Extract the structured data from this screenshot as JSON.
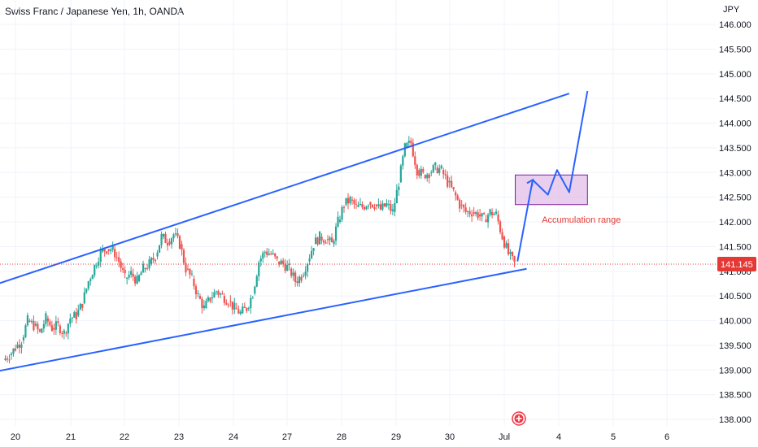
{
  "header": {
    "title": "Swiss Franc / Japanese Yen, 1h, OANDA"
  },
  "colors": {
    "up": "#26a69a",
    "down": "#ef5350",
    "trendline": "#2962ff",
    "box_fill": "#e1bee7",
    "box_stroke": "#7b1fa2",
    "annotation": "#e53935",
    "price_line": "#e53935",
    "grid": "#f0f3fa"
  },
  "chart_data": {
    "type": "candlestick",
    "title": "Swiss Franc / Japanese Yen, 1h, OANDA",
    "y_unit": "JPY",
    "ylim": [
      137.95,
      146.2
    ],
    "y_ticks": [
      "138.000",
      "138.500",
      "139.000",
      "139.500",
      "140.000",
      "140.500",
      "141.000",
      "141.500",
      "142.000",
      "142.500",
      "143.000",
      "143.500",
      "144.000",
      "144.500",
      "145.000",
      "145.500",
      "146.000"
    ],
    "x_ticks": [
      "20",
      "21",
      "22",
      "23",
      "24",
      "27",
      "28",
      "29",
      "30",
      "Jul",
      "4",
      "5",
      "6"
    ],
    "last_price": "141.145",
    "price_path": [
      [
        0,
        139.2
      ],
      [
        1,
        139.3
      ],
      [
        2,
        139.45
      ],
      [
        3,
        139.6
      ],
      [
        4,
        140.0
      ],
      [
        5,
        139.9
      ],
      [
        6,
        139.75
      ],
      [
        7,
        140.05
      ],
      [
        8,
        139.85
      ],
      [
        9,
        139.9
      ],
      [
        10,
        139.75
      ],
      [
        11,
        140.05
      ],
      [
        12,
        140.1
      ],
      [
        13,
        140.35
      ],
      [
        14,
        140.8
      ],
      [
        15,
        141.1
      ],
      [
        16,
        141.4
      ],
      [
        17,
        141.45
      ],
      [
        18,
        141.45
      ],
      [
        19,
        141.2
      ],
      [
        20,
        140.85
      ],
      [
        21,
        140.95
      ],
      [
        22,
        140.8
      ],
      [
        23,
        141.05
      ],
      [
        24,
        141.15
      ],
      [
        25,
        141.3
      ],
      [
        26,
        141.7
      ],
      [
        27,
        141.6
      ],
      [
        28,
        141.75
      ],
      [
        29,
        141.55
      ],
      [
        30,
        141.05
      ],
      [
        31,
        140.85
      ],
      [
        32,
        140.5
      ],
      [
        33,
        140.25
      ],
      [
        34,
        140.45
      ],
      [
        35,
        140.6
      ],
      [
        36,
        140.5
      ],
      [
        37,
        140.4
      ],
      [
        38,
        140.25
      ],
      [
        39,
        140.15
      ],
      [
        40,
        140.25
      ],
      [
        41,
        140.55
      ],
      [
        42,
        141.2
      ],
      [
        43,
        141.4
      ],
      [
        44,
        141.35
      ],
      [
        45,
        141.2
      ],
      [
        46,
        141.15
      ],
      [
        47,
        141.05
      ],
      [
        48,
        140.8
      ],
      [
        49,
        140.9
      ],
      [
        50,
        141.2
      ],
      [
        51,
        141.55
      ],
      [
        52,
        141.7
      ],
      [
        53,
        141.65
      ],
      [
        54,
        141.55
      ],
      [
        55,
        142.0
      ],
      [
        56,
        142.35
      ],
      [
        57,
        142.45
      ],
      [
        58,
        142.3
      ],
      [
        59,
        142.3
      ],
      [
        60,
        142.4
      ],
      [
        61,
        142.35
      ],
      [
        62,
        142.25
      ],
      [
        63,
        142.35
      ],
      [
        64,
        142.2
      ],
      [
        65,
        142.8
      ],
      [
        66,
        143.5
      ],
      [
        67,
        143.6
      ],
      [
        68,
        143.05
      ],
      [
        69,
        142.95
      ],
      [
        70,
        143.0
      ],
      [
        71,
        143.1
      ],
      [
        72,
        143.05
      ],
      [
        73,
        142.8
      ],
      [
        74,
        142.6
      ],
      [
        75,
        142.35
      ],
      [
        76,
        142.2
      ],
      [
        77,
        142.2
      ],
      [
        78,
        142.15
      ],
      [
        79,
        142.05
      ],
      [
        80,
        142.2
      ],
      [
        81,
        142.15
      ],
      [
        82,
        141.7
      ],
      [
        83,
        141.35
      ],
      [
        84,
        141.15
      ]
    ],
    "trendlines": [
      {
        "name": "upper",
        "from": [
          -2,
          140.7
        ],
        "to": [
          93,
          144.6
        ]
      },
      {
        "name": "lower",
        "from": [
          -2,
          138.95
        ],
        "to": [
          86,
          141.05
        ]
      }
    ],
    "projection": [
      [
        84.5,
        141.2
      ],
      [
        87,
        142.85
      ],
      [
        89.5,
        142.55
      ],
      [
        91,
        143.05
      ],
      [
        93,
        142.6
      ],
      [
        96,
        144.65
      ]
    ],
    "zone": {
      "x_from": 84,
      "x_to": 96,
      "y_low": 142.35,
      "y_high": 142.95
    },
    "annotations": [
      {
        "text": "Accumulation range",
        "x": 88.5,
        "y": 142.05
      }
    ]
  }
}
